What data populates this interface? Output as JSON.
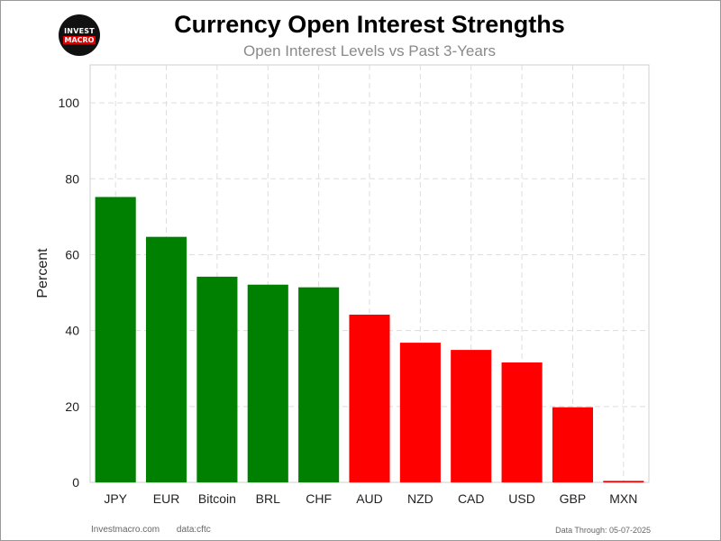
{
  "logo": {
    "line1": "INVEST",
    "line2": "MACRO"
  },
  "footer": {
    "site": "Investmacro.com",
    "source": "data:cftc",
    "data_through": "Data Through: 05-07-2025"
  },
  "colors": {
    "positive": "#008000",
    "negative": "#ff0000",
    "grid": "#dddddd"
  },
  "chart_data": {
    "type": "bar",
    "title": "Currency Open Interest Strengths",
    "subtitle": "Open Interest Levels vs Past 3-Years",
    "xlabel": "",
    "ylabel": "Percent",
    "ylim": [
      0,
      110
    ],
    "yticks": [
      0,
      20,
      40,
      60,
      80,
      100
    ],
    "grid": true,
    "categories": [
      "JPY",
      "EUR",
      "Bitcoin",
      "BRL",
      "CHF",
      "AUD",
      "NZD",
      "CAD",
      "USD",
      "GBP",
      "MXN"
    ],
    "values": [
      75.2,
      64.7,
      54.2,
      52.1,
      51.4,
      44.2,
      36.8,
      34.9,
      31.6,
      19.8,
      0.4
    ],
    "bar_colors": [
      "#008000",
      "#008000",
      "#008000",
      "#008000",
      "#008000",
      "#ff0000",
      "#ff0000",
      "#ff0000",
      "#ff0000",
      "#ff0000",
      "#ff0000"
    ]
  }
}
